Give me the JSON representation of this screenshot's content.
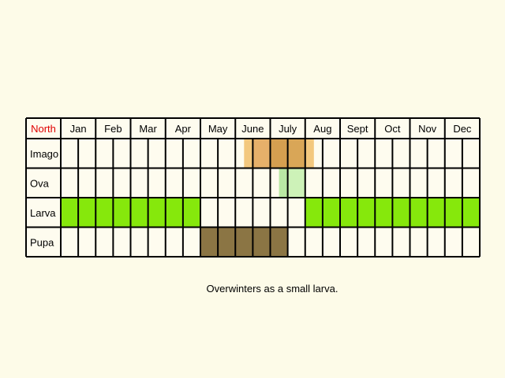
{
  "header": {
    "region": "North",
    "region_color": "#e00000",
    "months": [
      "Jan",
      "Feb",
      "Mar",
      "Apr",
      "May",
      "June",
      "July",
      "Aug",
      "Sept",
      "Oct",
      "Nov",
      "Dec"
    ]
  },
  "colors": {
    "background": "#fdfbe8",
    "cell": "#fefcef",
    "grid": "#000000"
  },
  "stages": [
    {
      "label": "Imago",
      "segments": [
        {
          "from": 6.25,
          "to": 6.5,
          "color": "#f3c87e"
        },
        {
          "from": 6.5,
          "to": 7.0,
          "color": "#e6b06a"
        },
        {
          "from": 7.0,
          "to": 7.5,
          "color": "#d59f50"
        },
        {
          "from": 7.5,
          "to": 8.0,
          "color": "#d9a657"
        },
        {
          "from": 8.0,
          "to": 8.25,
          "color": "#f3c87e"
        }
      ]
    },
    {
      "label": "Ova",
      "segments": [
        {
          "from": 7.25,
          "to": 7.5,
          "color": "#b9e8a4"
        },
        {
          "from": 7.5,
          "to": 8.0,
          "color": "#cdf2b8"
        }
      ]
    },
    {
      "label": "Larva",
      "segments": [
        {
          "from": 1.0,
          "to": 5.0,
          "color": "#86e80c"
        },
        {
          "from": 8.0,
          "to": 13.0,
          "color": "#86e80c"
        }
      ]
    },
    {
      "label": "Pupa",
      "segments": [
        {
          "from": 5.0,
          "to": 7.5,
          "color": "#8b7544"
        }
      ]
    }
  ],
  "note": "Overwinters as a small larva."
}
